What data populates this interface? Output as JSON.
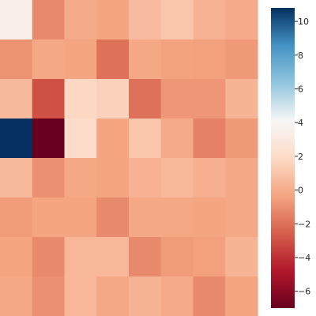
{
  "chart_data": {
    "type": "heatmap",
    "title": "",
    "xlabel": "",
    "ylabel": "",
    "rows": 8,
    "cols": 8,
    "values": [
      [
        3.5,
        -1.2,
        -0.1,
        -0.3,
        0.6,
        1.0,
        0.2,
        -0.1
      ],
      [
        -0.9,
        -0.2,
        -0.3,
        -2.0,
        -0.2,
        -0.4,
        -0.5,
        -0.7
      ],
      [
        0.5,
        -3.0,
        1.8,
        1.5,
        -2.0,
        -0.8,
        -0.8,
        0.3
      ],
      [
        10.8,
        -7.0,
        2.0,
        -0.3,
        1.0,
        -0.1,
        -1.5,
        -0.7
      ],
      [
        0.5,
        -1.0,
        -0.2,
        -0.3,
        0.2,
        0.4,
        0.1,
        -0.2
      ],
      [
        -0.6,
        -0.3,
        -0.3,
        -1.2,
        -0.2,
        -0.2,
        -0.3,
        -0.2
      ],
      [
        -0.3,
        -1.2,
        0.4,
        0.4,
        -1.2,
        -0.6,
        -0.5,
        0.3
      ],
      [
        -0.2,
        -1.0,
        0.4,
        -0.2,
        0.3,
        -0.1,
        -1.2,
        -0.3
      ]
    ],
    "colormap": "RdBu",
    "vmin": -7.0,
    "vmax": 10.8,
    "colorbar": {
      "ticks": [
        10,
        8,
        6,
        4,
        2,
        0,
        -2,
        -4,
        -6
      ],
      "tick_labels": [
        "10",
        "8",
        "6",
        "4",
        "2",
        "0",
        "−2",
        "−4",
        "−6"
      ]
    },
    "colormap_stops": [
      {
        "v": 0.0,
        "color": "#67001f"
      },
      {
        "v": 0.125,
        "color": "#b2182b"
      },
      {
        "v": 0.25,
        "color": "#d6604d"
      },
      {
        "v": 0.375,
        "color": "#f4a582"
      },
      {
        "v": 0.5,
        "color": "#fddbc7"
      },
      {
        "v": 0.625,
        "color": "#f7f7f7"
      },
      {
        "v": 0.75,
        "color": "#92c5de"
      },
      {
        "v": 0.875,
        "color": "#4393c3"
      },
      {
        "v": 1.0,
        "color": "#053061"
      }
    ],
    "tick_color": "#262626"
  }
}
